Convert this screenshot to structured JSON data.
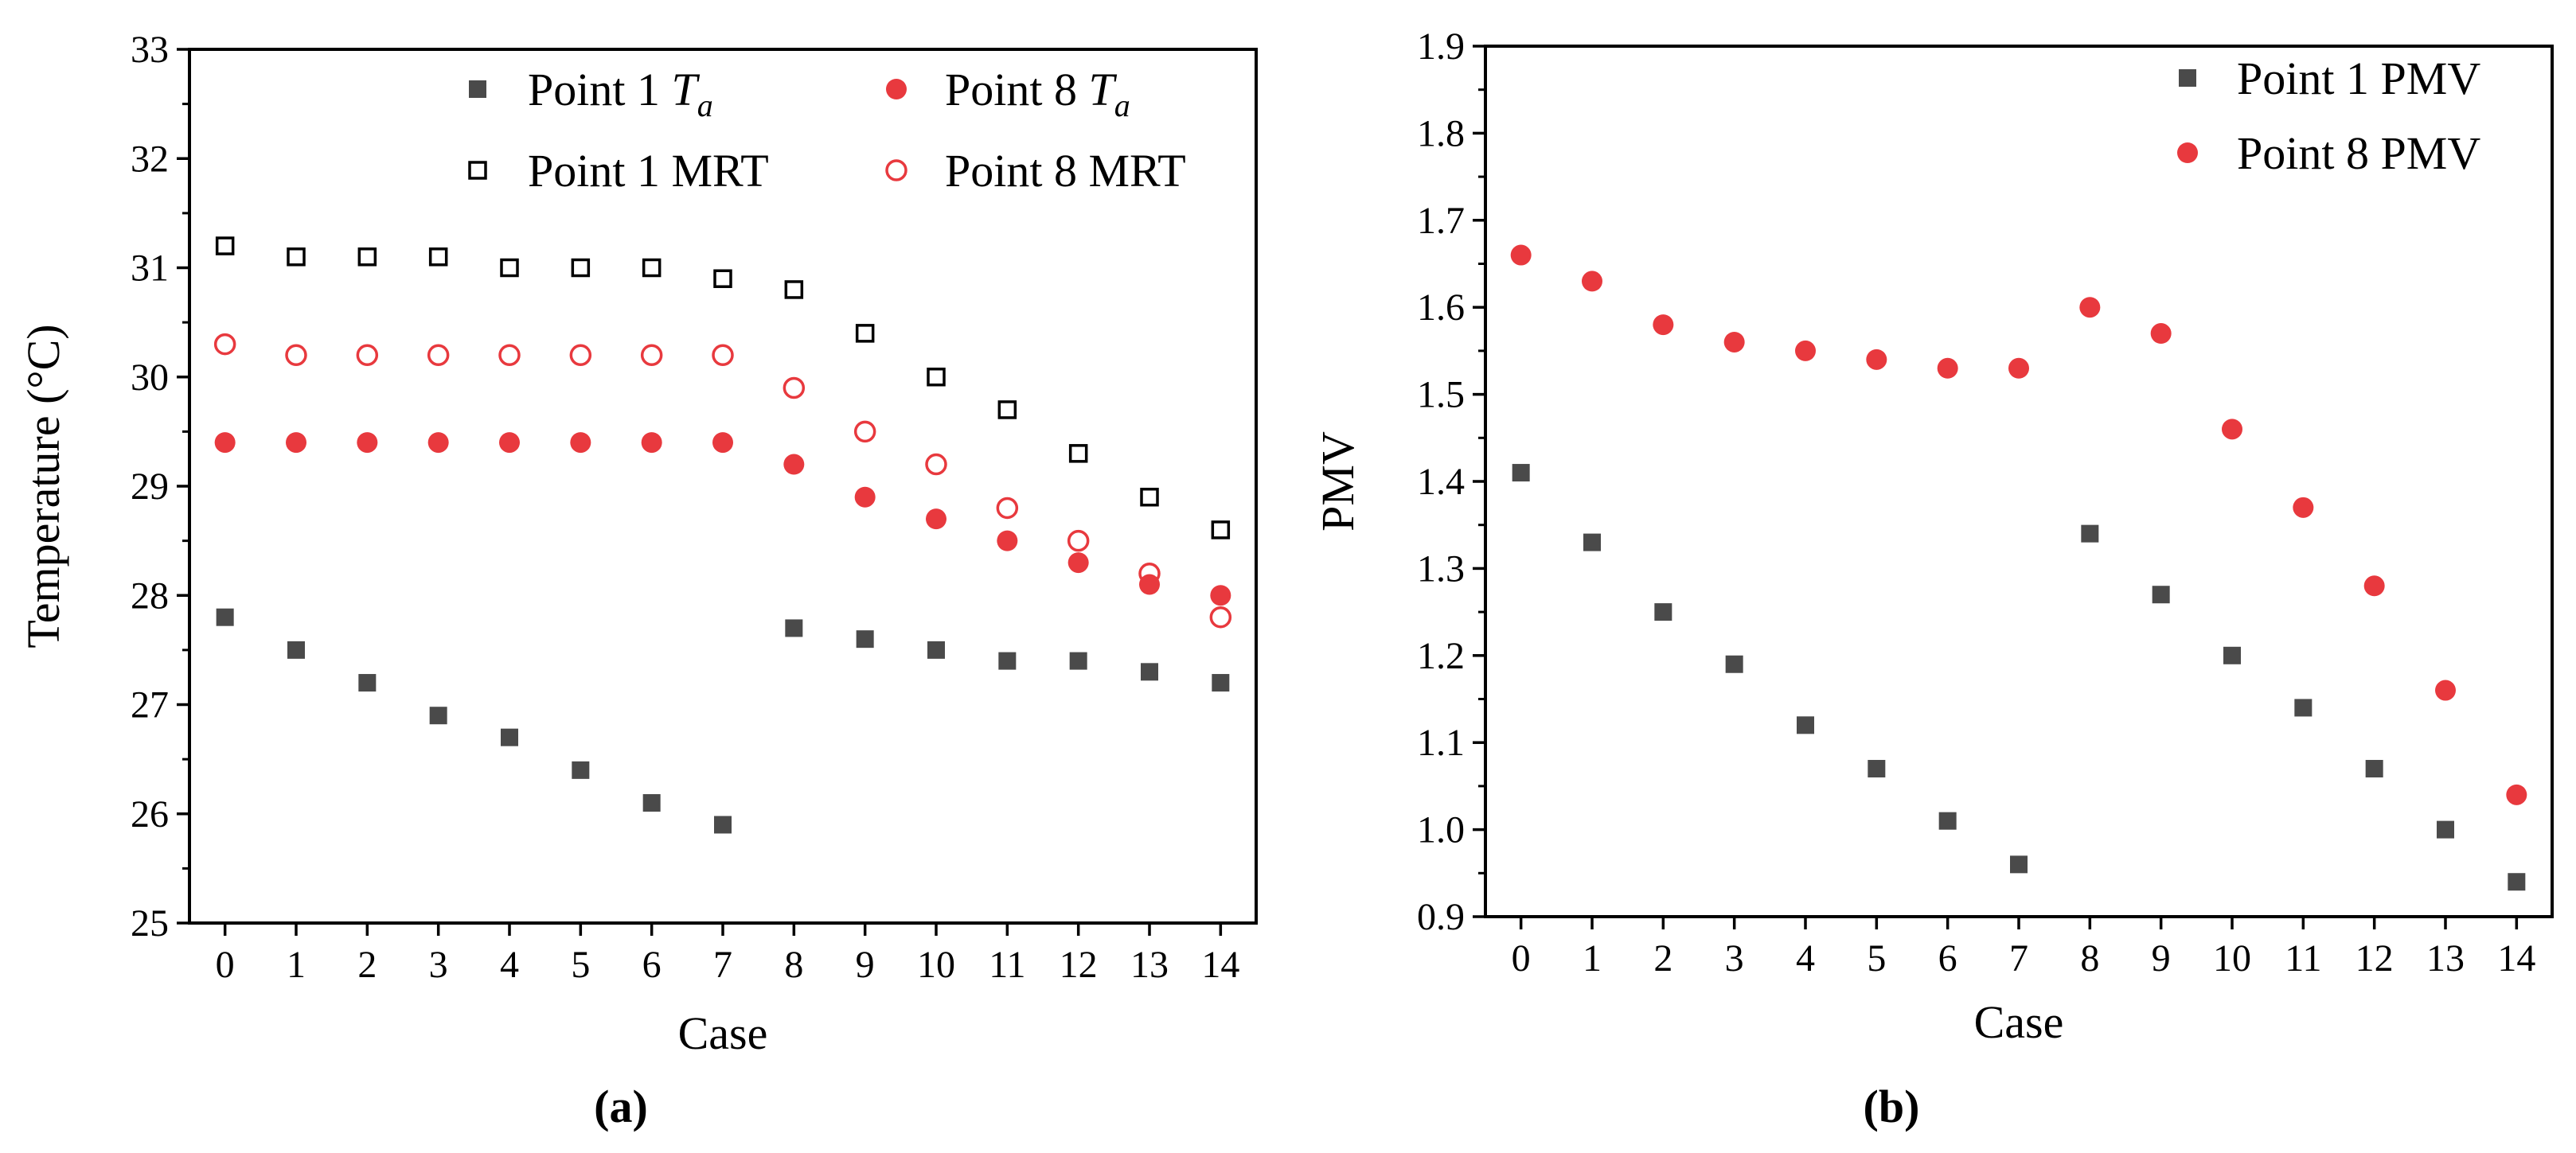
{
  "chart_data": [
    {
      "type": "scatter",
      "panel_label": "(a)",
      "xlabel": "Case",
      "ylabel": "Temperature (°C)",
      "xlim": [
        -0.5,
        14.5
      ],
      "ylim": [
        25,
        33
      ],
      "x_ticks": [
        0,
        1,
        2,
        3,
        4,
        5,
        6,
        7,
        8,
        9,
        10,
        11,
        12,
        13,
        14
      ],
      "y_ticks": [
        25,
        26,
        27,
        28,
        29,
        30,
        31,
        32,
        33
      ],
      "legend_position": "top",
      "x": [
        0,
        1,
        2,
        3,
        4,
        5,
        6,
        7,
        8,
        9,
        10,
        11,
        12,
        13,
        14
      ],
      "series": [
        {
          "name_main": "Point 1 ",
          "name_var": "T",
          "name_sub": "a",
          "marker": "square-filled",
          "color": "#4a4a4a",
          "values": [
            27.8,
            27.5,
            27.2,
            26.9,
            26.7,
            26.4,
            26.1,
            25.9,
            27.7,
            27.6,
            27.5,
            27.4,
            27.4,
            27.3,
            27.2
          ]
        },
        {
          "name_main": "Point 1 MRT",
          "marker": "square-open",
          "color": "#000000",
          "values": [
            31.2,
            31.1,
            31.1,
            31.1,
            31.0,
            31.0,
            31.0,
            30.9,
            30.8,
            30.4,
            30.0,
            29.7,
            29.3,
            28.9,
            28.6
          ]
        },
        {
          "name_main": "Point 8 ",
          "name_var": "T",
          "name_sub": "a",
          "marker": "circle-filled",
          "color": "#e8393e",
          "values": [
            29.4,
            29.4,
            29.4,
            29.4,
            29.4,
            29.4,
            29.4,
            29.4,
            29.2,
            28.9,
            28.7,
            28.5,
            28.3,
            28.1,
            28.0
          ]
        },
        {
          "name_main": "Point 8 MRT",
          "marker": "circle-open",
          "color": "#e8393e",
          "values": [
            30.3,
            30.2,
            30.2,
            30.2,
            30.2,
            30.2,
            30.2,
            30.2,
            29.9,
            29.5,
            29.2,
            28.8,
            28.5,
            28.2,
            27.8
          ]
        }
      ]
    },
    {
      "type": "scatter",
      "panel_label": "(b)",
      "xlabel": "Case",
      "ylabel": "PMV",
      "xlim": [
        -0.5,
        14.5
      ],
      "ylim": [
        0.9,
        1.9
      ],
      "x_ticks": [
        0,
        1,
        2,
        3,
        4,
        5,
        6,
        7,
        8,
        9,
        10,
        11,
        12,
        13,
        14
      ],
      "y_ticks": [
        "0.9",
        "1.0",
        "1.1",
        "1.2",
        "1.3",
        "1.4",
        "1.5",
        "1.6",
        "1.7",
        "1.8",
        "1.9"
      ],
      "legend_position": "top-right",
      "x": [
        0,
        1,
        2,
        3,
        4,
        5,
        6,
        7,
        8,
        9,
        10,
        11,
        12,
        13,
        14
      ],
      "series": [
        {
          "name_main": "Point 1 PMV",
          "marker": "square-filled",
          "color": "#4a4a4a",
          "values": [
            1.41,
            1.33,
            1.25,
            1.19,
            1.12,
            1.07,
            1.01,
            0.96,
            1.34,
            1.27,
            1.2,
            1.14,
            1.07,
            1.0,
            0.94
          ]
        },
        {
          "name_main": "Point 8 PMV",
          "marker": "circle-filled",
          "color": "#e8393e",
          "values": [
            1.66,
            1.63,
            1.58,
            1.56,
            1.55,
            1.54,
            1.53,
            1.53,
            1.6,
            1.57,
            1.46,
            1.37,
            1.28,
            1.16,
            1.04
          ]
        }
      ]
    }
  ]
}
